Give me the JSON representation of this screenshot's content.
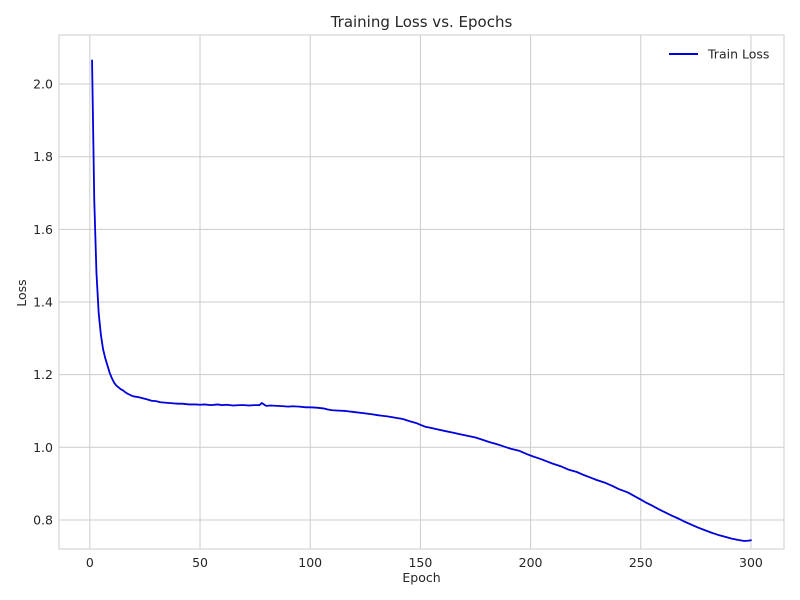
{
  "chart_data": {
    "type": "line",
    "title": "Training Loss vs. Epochs",
    "xlabel": "Epoch",
    "ylabel": "Loss",
    "xlim": [
      -14,
      315
    ],
    "ylim": [
      0.72,
      2.135
    ],
    "xticks": [
      0,
      50,
      100,
      150,
      200,
      250,
      300
    ],
    "yticks": [
      0.8,
      1.0,
      1.2,
      1.4,
      1.6,
      1.8,
      2.0
    ],
    "grid": true,
    "legend": {
      "position": "top-right"
    },
    "colors": {
      "series": "#0000dd",
      "grid": "#cccccc",
      "text": "#262626"
    },
    "series": [
      {
        "name": "Train Loss",
        "x": [
          1,
          2,
          3,
          4,
          5,
          6,
          7,
          8,
          9,
          10,
          11,
          12,
          13,
          14,
          15,
          16,
          17,
          18,
          19,
          20,
          22,
          24,
          26,
          28,
          30,
          32,
          34,
          36,
          38,
          40,
          42,
          45,
          48,
          50,
          52,
          55,
          58,
          60,
          62,
          65,
          68,
          70,
          72,
          75,
          77,
          78,
          80,
          82,
          85,
          88,
          90,
          92,
          95,
          98,
          100,
          103,
          106,
          108,
          110,
          113,
          116,
          120,
          124,
          128,
          131,
          135,
          138,
          142,
          145,
          148,
          150,
          152,
          155,
          158,
          161,
          165,
          168,
          171,
          175,
          178,
          181,
          185,
          188,
          191,
          195,
          198,
          201,
          204,
          207,
          210,
          214,
          217,
          221,
          224,
          227,
          230,
          234,
          237,
          240,
          244,
          247,
          250,
          252,
          255,
          258,
          261,
          264,
          267,
          270,
          273,
          276,
          279,
          282,
          285,
          288,
          291,
          294,
          297,
          299,
          300
        ],
        "y": [
          2.065,
          1.68,
          1.48,
          1.37,
          1.31,
          1.27,
          1.245,
          1.225,
          1.205,
          1.19,
          1.178,
          1.17,
          1.165,
          1.16,
          1.157,
          1.152,
          1.148,
          1.145,
          1.142,
          1.14,
          1.138,
          1.135,
          1.132,
          1.128,
          1.127,
          1.124,
          1.123,
          1.122,
          1.121,
          1.12,
          1.12,
          1.118,
          1.118,
          1.117,
          1.118,
          1.116,
          1.118,
          1.116,
          1.117,
          1.115,
          1.116,
          1.116,
          1.115,
          1.116,
          1.116,
          1.122,
          1.114,
          1.115,
          1.114,
          1.113,
          1.112,
          1.113,
          1.112,
          1.11,
          1.11,
          1.109,
          1.107,
          1.104,
          1.102,
          1.101,
          1.1,
          1.097,
          1.094,
          1.091,
          1.088,
          1.085,
          1.082,
          1.078,
          1.072,
          1.067,
          1.062,
          1.057,
          1.053,
          1.049,
          1.045,
          1.04,
          1.036,
          1.032,
          1.027,
          1.021,
          1.015,
          1.008,
          1.002,
          0.996,
          0.99,
          0.982,
          0.975,
          0.969,
          0.962,
          0.955,
          0.947,
          0.939,
          0.932,
          0.924,
          0.917,
          0.91,
          0.902,
          0.894,
          0.885,
          0.876,
          0.866,
          0.856,
          0.849,
          0.84,
          0.83,
          0.821,
          0.812,
          0.804,
          0.795,
          0.787,
          0.779,
          0.772,
          0.765,
          0.759,
          0.754,
          0.749,
          0.745,
          0.742,
          0.743,
          0.744
        ]
      }
    ]
  }
}
